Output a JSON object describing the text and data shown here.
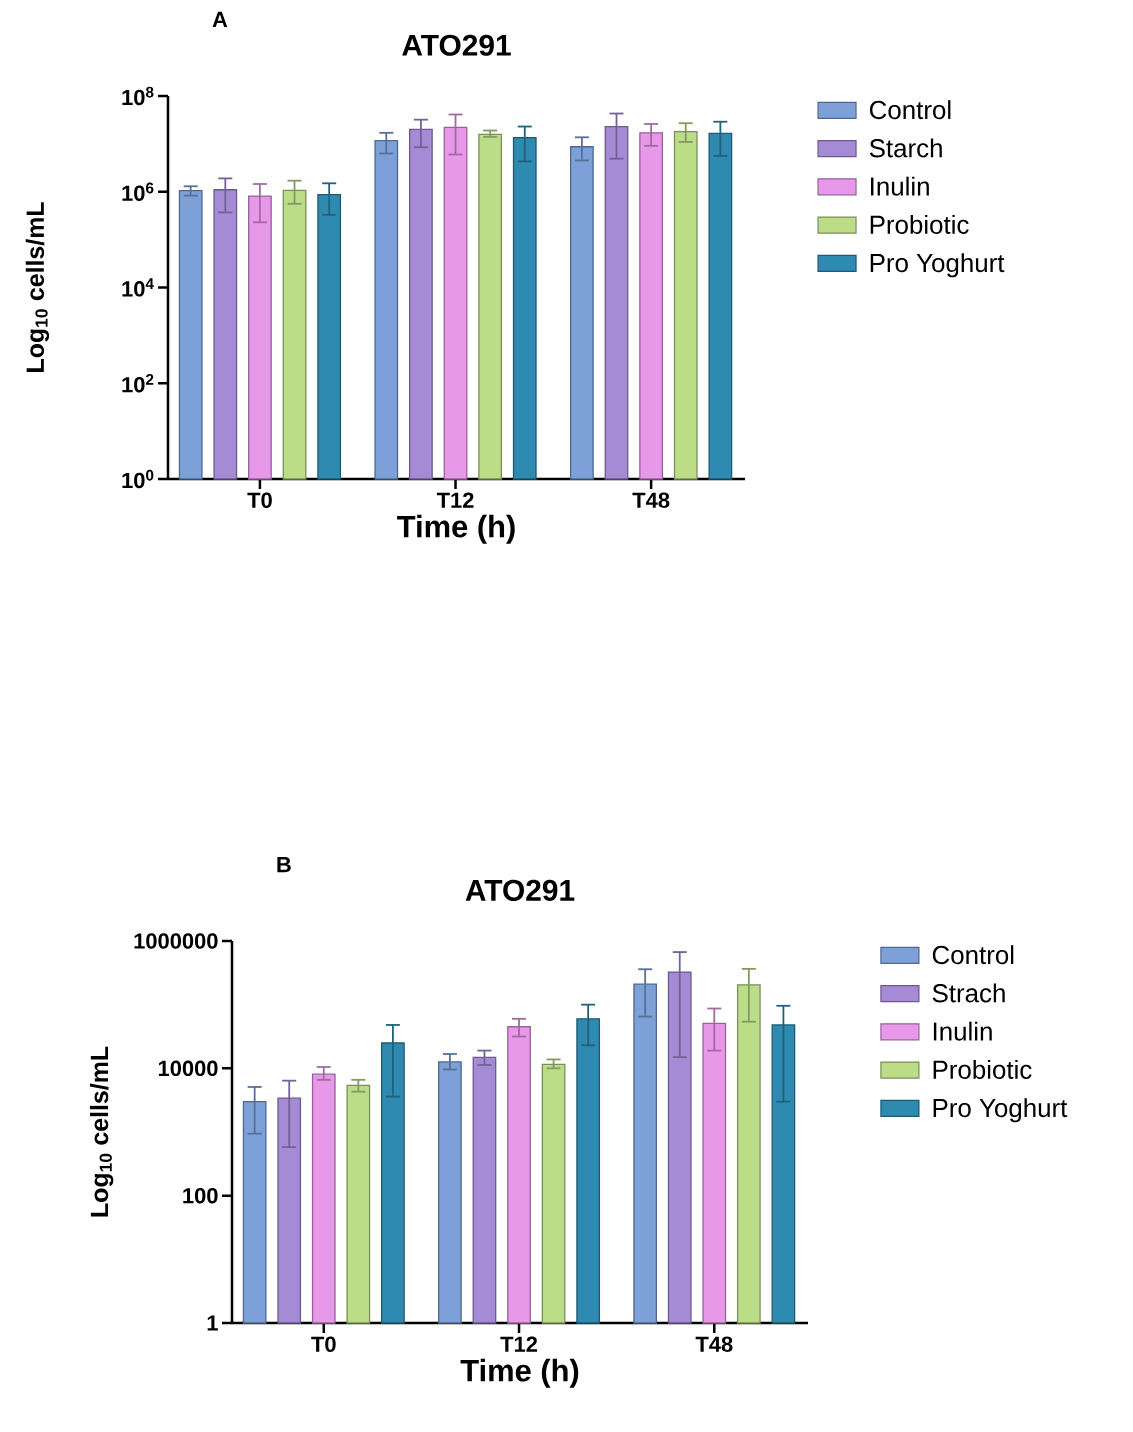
{
  "chart_data": [
    {
      "type": "bar",
      "title": "ATO291",
      "xlabel": "Time (h)",
      "ylabel": "Log$_{10}$ cells/mL",
      "annotations": [
        "A"
      ],
      "categories": [
        "T0",
        "T12",
        "T48"
      ],
      "log": "y",
      "ylim": [
        1,
        100000000
      ],
      "yticks": [
        {
          "value": 1,
          "label": "10$^{0}$"
        },
        {
          "value": 100,
          "label": "10$^{2}$"
        },
        {
          "value": 10000,
          "label": "10$^{4}$"
        },
        {
          "value": 1000000,
          "label": "10$^{6}$"
        },
        {
          "value": 100000000,
          "label": "10$^{8}$"
        }
      ],
      "legend": "right",
      "grid": false,
      "series": [
        {
          "name": "Control",
          "color": "#7da0d8",
          "values": [
            1050000,
            11700000,
            8700000
          ],
          "errors": [
            [
              830000,
              1300000
            ],
            [
              6300000,
              17000000
            ],
            [
              4500000,
              13700000
            ]
          ]
        },
        {
          "name": "Starch",
          "color": "#a58bd6",
          "values": [
            1100000,
            20000000,
            23000000
          ],
          "errors": [
            [
              370000,
              1900000
            ],
            [
              8500000,
              32000000
            ],
            [
              4900000,
              43000000
            ]
          ]
        },
        {
          "name": "Inulin",
          "color": "#e898e8",
          "values": [
            810000,
            22000000,
            17000000
          ],
          "errors": [
            [
              230000,
              1450000
            ],
            [
              6000000,
              41000000
            ],
            [
              9100000,
              26000000
            ]
          ]
        },
        {
          "name": "Probiotic",
          "color": "#bbdd88",
          "values": [
            1070000,
            15800000,
            18000000
          ],
          "errors": [
            [
              560000,
              1700000
            ],
            [
              14000000,
              19000000
            ],
            [
              11000000,
              27000000
            ]
          ]
        },
        {
          "name": "Pro Yoghurt",
          "color": "#2e8ab0",
          "values": [
            870000,
            13500000,
            16600000
          ],
          "errors": [
            [
              330000,
              1500000
            ],
            [
              4300000,
              23000000
            ],
            [
              5600000,
              29000000
            ]
          ]
        }
      ]
    },
    {
      "type": "bar",
      "title": "ATO291",
      "xlabel": "Time (h)",
      "ylabel": "Log$_{10}$ cells/mL",
      "annotations": [
        "B"
      ],
      "categories": [
        "T0",
        "T12",
        "T48"
      ],
      "log": "y",
      "ylim": [
        1,
        1000000
      ],
      "yticks": [
        1,
        100,
        10000,
        1000000
      ],
      "legend": "right",
      "grid": false,
      "series": [
        {
          "name": "Control",
          "color": "#7da0d8",
          "values": [
            3000,
            12600,
            210000
          ],
          "errors": [
            [
              940,
              5100
            ],
            [
              9600,
              16800
            ],
            [
              65000,
              360000
            ]
          ]
        },
        {
          "name": "Strach",
          "color": "#a58bd6",
          "values": [
            3400,
            14900,
            325000
          ],
          "errors": [
            [
              580,
              6400
            ],
            [
              11300,
              19000
            ],
            [
              15000,
              670000
            ]
          ]
        },
        {
          "name": "Inulin",
          "color": "#e898e8",
          "values": [
            8100,
            45000,
            51000
          ],
          "errors": [
            [
              6600,
              10500
            ],
            [
              31600,
              60000
            ],
            [
              19000,
              87000
            ]
          ]
        },
        {
          "name": "Probiotic",
          "color": "#bbdd88",
          "values": [
            5400,
            11500,
            205000
          ],
          "errors": [
            [
              4300,
              6600
            ],
            [
              10000,
              13800
            ],
            [
              54000,
              365000
            ]
          ]
        },
        {
          "name": "Pro Yoghurt",
          "color": "#2e8ab0",
          "values": [
            25000,
            60000,
            48000
          ],
          "errors": [
            [
              3600,
              48000
            ],
            [
              23000,
              100000
            ],
            [
              3000,
              96000
            ]
          ]
        }
      ]
    }
  ]
}
